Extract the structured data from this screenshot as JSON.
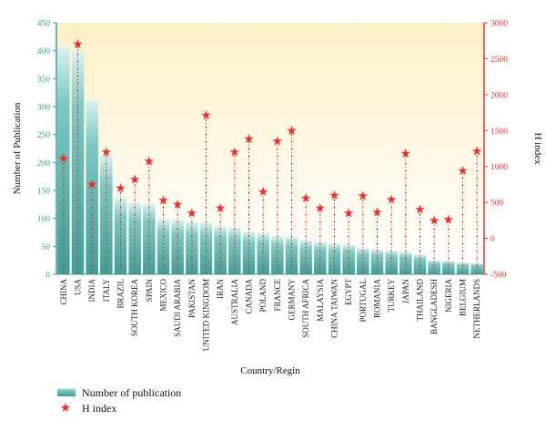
{
  "chart_data": {
    "type": "bar",
    "xlabel": "Country/Regin",
    "categories": [
      "CHINA",
      "USA",
      "INDIA",
      "ITALY",
      "BRAZIL",
      "SOUTH KOREA",
      "SPAIN",
      "MEXICO",
      "SAUDI ARABIA",
      "PAKISTAN",
      "UNITED KINGDOM",
      "IRAN",
      "AUSTRALIA",
      "CANADA",
      "POLAND",
      "FRANCE",
      "GERMANY",
      "SOUTH AFRICA",
      "MALAYSIA",
      "CHINA TAIWAN",
      "EGYPT",
      "PORTUGAL",
      "ROMANIA",
      "TURKEY",
      "JAPAN",
      "THAILAND",
      "BANGLADESH",
      "NIGERIA",
      "BELGIUM",
      "NETHERLANDS"
    ],
    "series": [
      {
        "name": "Number of publication",
        "axis": "left",
        "values": [
          407,
          398,
          311,
          213,
          137,
          128,
          126,
          98,
          97,
          93,
          92,
          86,
          83,
          76,
          74,
          68,
          67,
          61,
          58,
          55,
          53,
          47,
          44,
          42,
          40,
          35,
          25,
          24,
          21,
          20
        ]
      },
      {
        "name": "H index",
        "axis": "right",
        "values": [
          1110,
          2700,
          750,
          1200,
          700,
          820,
          1070,
          530,
          470,
          350,
          1710,
          420,
          1200,
          1380,
          650,
          1350,
          1500,
          560,
          420,
          600,
          350,
          590,
          360,
          540,
          1180,
          400,
          250,
          260,
          940,
          1210
        ]
      }
    ],
    "ylabel_left": "Number of Publication",
    "ylabel_right": "H index",
    "ylim_left": [
      0,
      450
    ],
    "yticks_left": [
      0,
      50,
      100,
      150,
      200,
      250,
      300,
      350,
      400,
      450
    ],
    "ylim_right": [
      -500,
      3000
    ],
    "yticks_right": [
      -500,
      0,
      500,
      1000,
      1500,
      2000,
      2500,
      3000
    ],
    "legend_position": "bottom-left",
    "colors": {
      "bar_top": "#d8f2f0",
      "bar_mid": "#7ec8c3",
      "bar_bottom": "#3f9e98",
      "star": "#e8322e",
      "left_axis": "#3a9e9a",
      "right_axis": "#e8322e",
      "bg_top": "#fdf0c8",
      "bg_bottom": "#ffffff"
    }
  }
}
